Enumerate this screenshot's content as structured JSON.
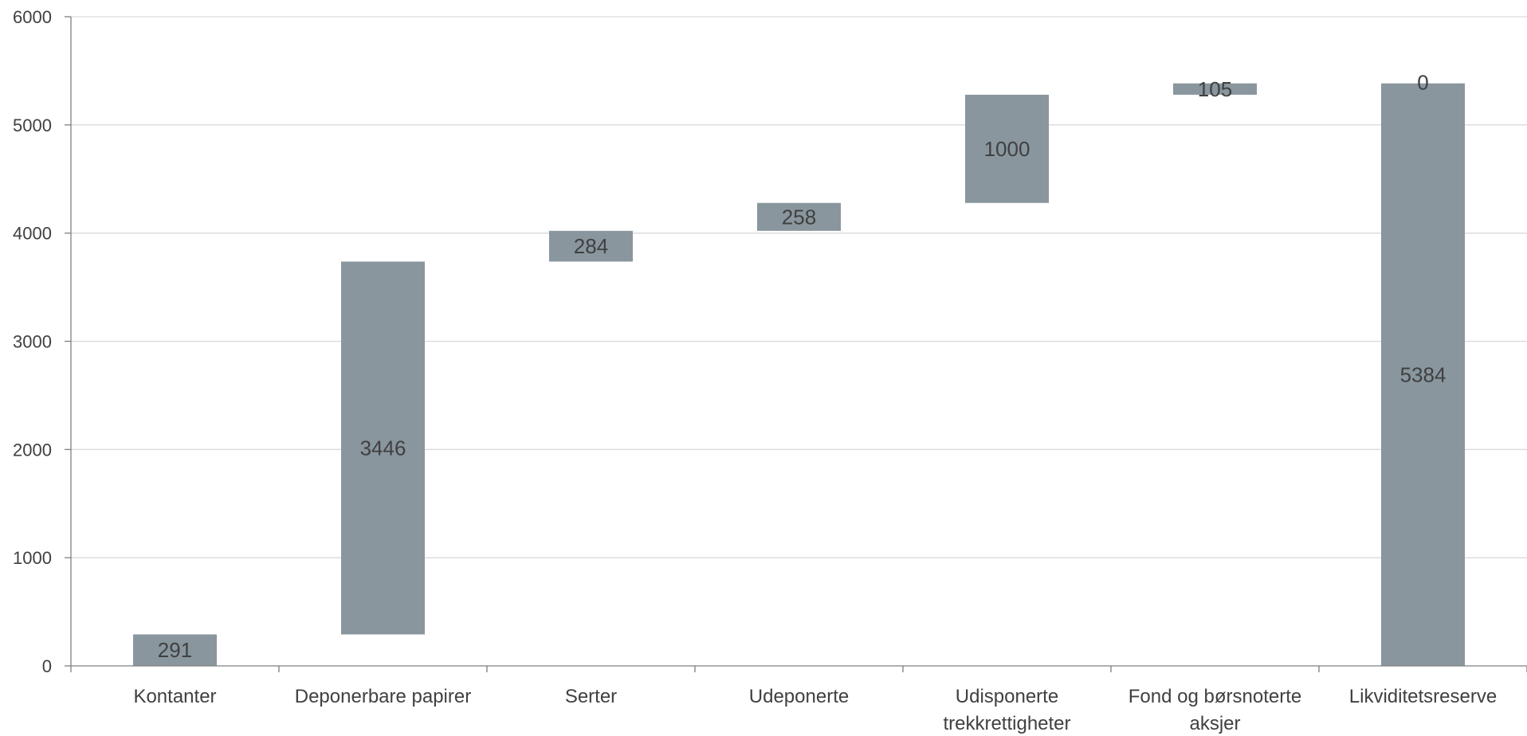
{
  "chart_data": {
    "type": "bar",
    "subtype": "waterfall",
    "categories": [
      [
        "Kontanter"
      ],
      [
        "Deponerbare papirer"
      ],
      [
        "Serter"
      ],
      [
        "Udeponerte"
      ],
      [
        "Udisponerte",
        "trekkrettigheter"
      ],
      [
        "Fond og børsnoterte",
        "aksjer"
      ],
      [
        "Likviditetsreserve"
      ]
    ],
    "series": [
      {
        "values": [
          291,
          3446,
          284,
          258,
          1000,
          105,
          5384
        ]
      }
    ],
    "bases": [
      0,
      291,
      3737,
      4021,
      4279,
      5279,
      0
    ],
    "data_labels": [
      "291",
      "3446",
      "284",
      "258",
      "1000",
      "105",
      "0"
    ],
    "total_label": "5384",
    "ylim": [
      0,
      6000
    ],
    "yticks": [
      "0",
      "1000",
      "2000",
      "3000",
      "4000",
      "5000",
      "6000"
    ],
    "grid": true,
    "legend": "none",
    "colors": {
      "bar": "#89969e",
      "grid": "#d9d9d9",
      "axis": "#808080",
      "text": "#404040"
    }
  }
}
